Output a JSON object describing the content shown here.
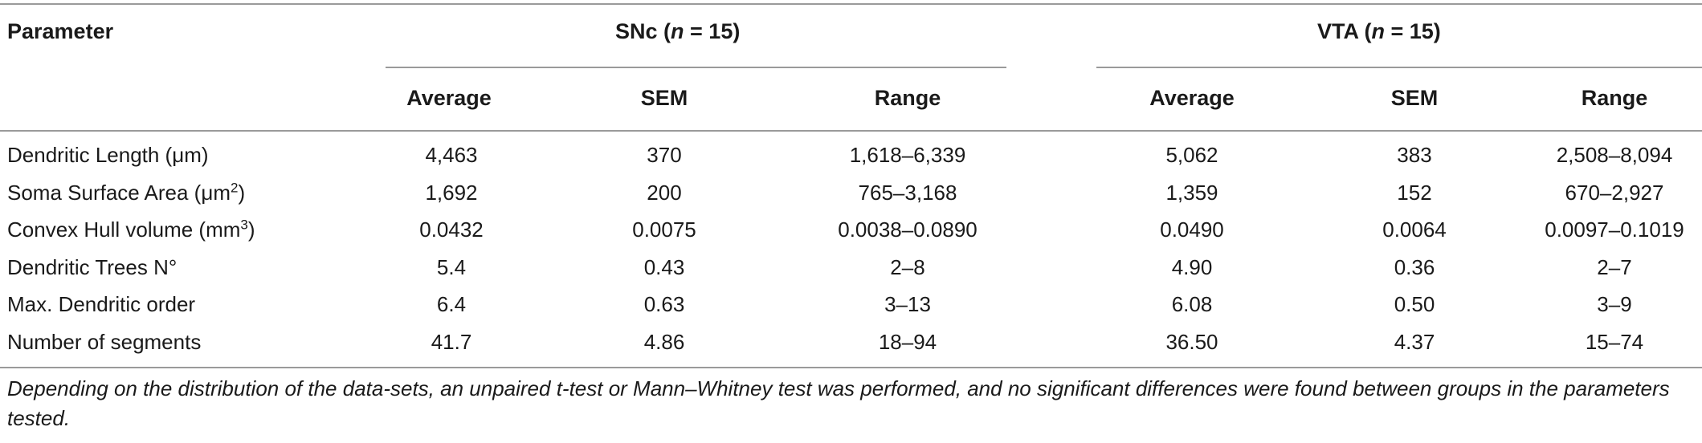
{
  "header": {
    "parameter": "Parameter",
    "group_snc_prefix": "SNc (",
    "group_snc_n": "n",
    "group_snc_suffix": " = 15)",
    "group_vta_prefix": "VTA (",
    "group_vta_n": "n",
    "group_vta_suffix": " = 15)",
    "sub": [
      "Average",
      "SEM",
      "Range",
      "Average",
      "SEM",
      "Range"
    ]
  },
  "rows": [
    {
      "param": "Dendritic Length (μm)",
      "param_sup": "",
      "param_after": "",
      "values": [
        "4,463",
        "370",
        "1,618–6,339",
        "5,062",
        "383",
        "2,508–8,094"
      ]
    },
    {
      "param": "Soma Surface Area (μm",
      "param_sup": "2",
      "param_after": ")",
      "values": [
        "1,692",
        "200",
        "765–3,168",
        "1,359",
        "152",
        "670–2,927"
      ]
    },
    {
      "param": "Convex Hull volume (mm",
      "param_sup": "3",
      "param_after": ")",
      "values": [
        "0.0432",
        "0.0075",
        "0.0038–0.0890",
        "0.0490",
        "0.0064",
        "0.0097–0.1019"
      ]
    },
    {
      "param": "Dendritic Trees N°",
      "param_sup": "",
      "param_after": "",
      "values": [
        "5.4",
        "0.43",
        "2–8",
        "4.90",
        "0.36",
        "2–7"
      ]
    },
    {
      "param": "Max. Dendritic order",
      "param_sup": "",
      "param_after": "",
      "values": [
        "6.4",
        "0.63",
        "3–13",
        "6.08",
        "0.50",
        "3–9"
      ]
    },
    {
      "param": "Number of segments",
      "param_sup": "",
      "param_after": "",
      "values": [
        "41.7",
        "4.86",
        "18–94",
        "36.50",
        "4.37",
        "15–74"
      ]
    }
  ],
  "footnote": "Depending on the distribution of the data-sets, an unpaired t-test or Mann–Whitney test was performed, and no significant differences were found between groups in the parameters tested."
}
